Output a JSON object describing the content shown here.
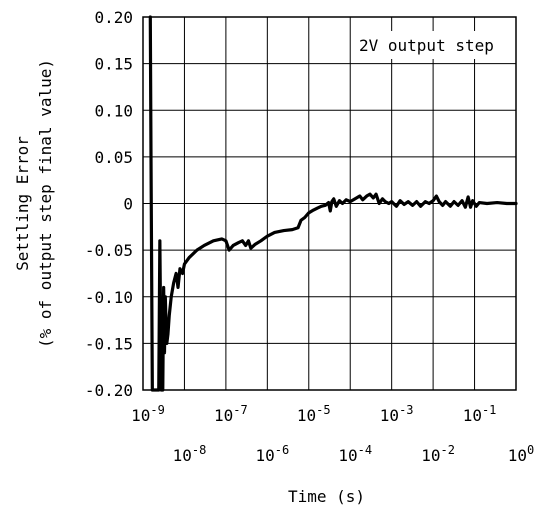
{
  "chart_data": {
    "type": "line",
    "title": "",
    "xlabel": "Time (s)",
    "ylabel": [
      "Settling Error",
      "(% of output step final value)"
    ],
    "x_scale": "log",
    "xlim": [
      1e-09,
      1
    ],
    "ylim": [
      -0.2,
      0.2
    ],
    "grid": true,
    "annotation": "2V output step",
    "x_ticks_upper": [
      {
        "value": 1e-09,
        "base": "10",
        "exp": "-9"
      },
      {
        "value": 1e-07,
        "base": "10",
        "exp": "-7"
      },
      {
        "value": 1e-05,
        "base": "10",
        "exp": "-5"
      },
      {
        "value": 0.001,
        "base": "10",
        "exp": "-3"
      },
      {
        "value": 0.1,
        "base": "10",
        "exp": "-1"
      }
    ],
    "x_ticks_lower": [
      {
        "value": 1e-08,
        "base": "10",
        "exp": "-8"
      },
      {
        "value": 1e-06,
        "base": "10",
        "exp": "-6"
      },
      {
        "value": 0.0001,
        "base": "10",
        "exp": "-4"
      },
      {
        "value": 0.01,
        "base": "10",
        "exp": "-2"
      },
      {
        "value": 1,
        "base": "10",
        "exp": "0"
      }
    ],
    "y_ticks": [
      {
        "value": 0.2,
        "label": "0.20"
      },
      {
        "value": 0.15,
        "label": "0.15"
      },
      {
        "value": 0.1,
        "label": "0.10"
      },
      {
        "value": 0.05,
        "label": "0.05"
      },
      {
        "value": 0,
        "label": "0"
      },
      {
        "value": -0.05,
        "label": "-0.05"
      },
      {
        "value": -0.1,
        "label": "-0.10"
      },
      {
        "value": -0.15,
        "label": "-0.15"
      },
      {
        "value": -0.2,
        "label": "-0.20"
      }
    ],
    "series": [
      {
        "color": "#000000",
        "points": [
          [
            1.5e-09,
            0.2
          ],
          [
            1.56e-09,
            0.05
          ],
          [
            1.63e-09,
            -0.1
          ],
          [
            1.68e-09,
            -0.2
          ],
          [
            2.4e-09,
            -0.2
          ],
          [
            2.55e-09,
            -0.04
          ],
          [
            2.65e-09,
            -0.12
          ],
          [
            2.75e-09,
            -0.2
          ],
          [
            3e-09,
            -0.2
          ],
          [
            3.15e-09,
            -0.09
          ],
          [
            3.3e-09,
            -0.16
          ],
          [
            3.45e-09,
            -0.1
          ],
          [
            3.6e-09,
            -0.13
          ],
          [
            3.75e-09,
            -0.15
          ],
          [
            4e-09,
            -0.14
          ],
          [
            4.3e-09,
            -0.12
          ],
          [
            4.8e-09,
            -0.1
          ],
          [
            5.5e-09,
            -0.085
          ],
          [
            6.3e-09,
            -0.075
          ],
          [
            7e-09,
            -0.09
          ],
          [
            7.8e-09,
            -0.07
          ],
          [
            9e-09,
            -0.075
          ],
          [
            1e-08,
            -0.065
          ],
          [
            1.3e-08,
            -0.058
          ],
          [
            2e-08,
            -0.05
          ],
          [
            3e-08,
            -0.045
          ],
          [
            5e-08,
            -0.04
          ],
          [
            8e-08,
            -0.038
          ],
          [
            1e-07,
            -0.04
          ],
          [
            1.2e-07,
            -0.05
          ],
          [
            1.5e-07,
            -0.045
          ],
          [
            2e-07,
            -0.042
          ],
          [
            2.5e-07,
            -0.04
          ],
          [
            3e-07,
            -0.045
          ],
          [
            3.5e-07,
            -0.04
          ],
          [
            4e-07,
            -0.048
          ],
          [
            5e-07,
            -0.044
          ],
          [
            7e-07,
            -0.04
          ],
          [
            1e-06,
            -0.035
          ],
          [
            1.5e-06,
            -0.031
          ],
          [
            2.5e-06,
            -0.029
          ],
          [
            4e-06,
            -0.028
          ],
          [
            5.5e-06,
            -0.026
          ],
          [
            6.5e-06,
            -0.018
          ],
          [
            8e-06,
            -0.015
          ],
          [
            1e-05,
            -0.01
          ],
          [
            1.3e-05,
            -0.007
          ],
          [
            1.6e-05,
            -0.005
          ],
          [
            2e-05,
            -0.003
          ],
          [
            2.5e-05,
            -0.002
          ],
          [
            3e-05,
            0.001
          ],
          [
            3.3e-05,
            -0.008
          ],
          [
            3.6e-05,
            0.002
          ],
          [
            4e-05,
            0.005
          ],
          [
            4.6e-05,
            -0.003
          ],
          [
            5.5e-05,
            0.003
          ],
          [
            6.5e-05,
            0.0
          ],
          [
            8e-05,
            0.004
          ],
          [
            0.0001,
            0.002
          ],
          [
            0.00013,
            0.005
          ],
          [
            0.00017,
            0.008
          ],
          [
            0.0002,
            0.004
          ],
          [
            0.00025,
            0.008
          ],
          [
            0.0003,
            0.01
          ],
          [
            0.00036,
            0.006
          ],
          [
            0.00042,
            0.01
          ],
          [
            0.0005,
            0.0
          ],
          [
            0.0006,
            0.005
          ],
          [
            0.0007,
            0.002
          ],
          [
            0.00085,
            0.0
          ],
          [
            0.001,
            0.002
          ],
          [
            0.0013,
            -0.003
          ],
          [
            0.0016,
            0.003
          ],
          [
            0.002,
            -0.001
          ],
          [
            0.0025,
            0.002
          ],
          [
            0.0032,
            -0.002
          ],
          [
            0.004,
            0.002
          ],
          [
            0.005,
            -0.003
          ],
          [
            0.0065,
            0.002
          ],
          [
            0.008,
            0.0
          ],
          [
            0.01,
            0.003
          ],
          [
            0.012,
            0.008
          ],
          [
            0.014,
            0.002
          ],
          [
            0.017,
            -0.002
          ],
          [
            0.02,
            0.002
          ],
          [
            0.026,
            -0.003
          ],
          [
            0.032,
            0.002
          ],
          [
            0.04,
            -0.002
          ],
          [
            0.05,
            0.003
          ],
          [
            0.06,
            -0.004
          ],
          [
            0.07,
            0.007
          ],
          [
            0.08,
            -0.004
          ],
          [
            0.09,
            0.003
          ],
          [
            0.11,
            -0.003
          ],
          [
            0.13,
            0.001
          ],
          [
            0.2,
            0.0
          ],
          [
            0.35,
            0.001
          ],
          [
            0.6,
            0.0
          ],
          [
            1.0,
            0.0
          ]
        ]
      }
    ]
  }
}
